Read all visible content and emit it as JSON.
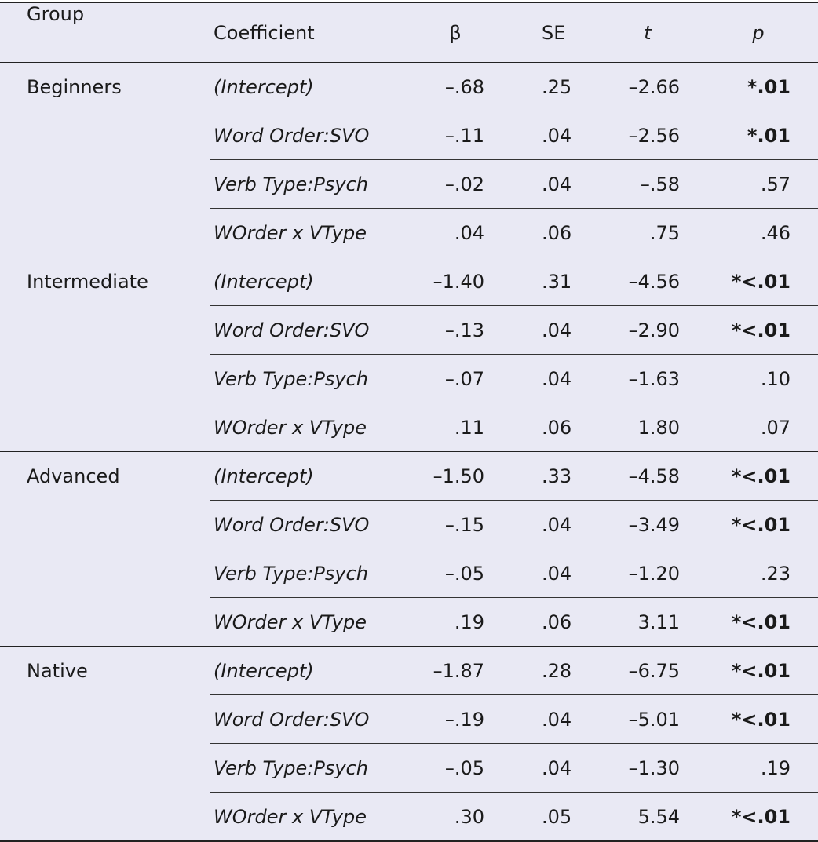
{
  "table": {
    "header": [
      "Group",
      "Coefficient",
      "β",
      "SE",
      "t",
      "p"
    ],
    "groups": [
      {
        "name": "Beginners",
        "rows": [
          [
            "(Intercept)",
            "–.68",
            ".25",
            "–2.66",
            "*.01"
          ],
          [
            "Word Order:SVO",
            "–.11",
            ".04",
            "–2.56",
            "*.01"
          ],
          [
            "Verb Type:Psych",
            "–.02",
            ".04",
            "–.58",
            ".57"
          ],
          [
            "WOrder x VType",
            ".04",
            ".06",
            ".75",
            ".46"
          ]
        ]
      },
      {
        "name": "Intermediate",
        "rows": [
          [
            "(Intercept)",
            "–1.40",
            ".31",
            "–4.56",
            "*<.01"
          ],
          [
            "Word Order:SVO",
            "–.13",
            ".04",
            "–2.90",
            "*<.01"
          ],
          [
            "Verb Type:Psych",
            "–.07",
            ".04",
            "–1.63",
            ".10"
          ],
          [
            "WOrder x VType",
            ".11",
            ".06",
            "1.80",
            ".07"
          ]
        ]
      },
      {
        "name": "Advanced",
        "rows": [
          [
            "(Intercept)",
            "–1.50",
            ".33",
            "–4.58",
            "*<.01"
          ],
          [
            "Word Order:SVO",
            "–.15",
            ".04",
            "–3.49",
            "*<.01"
          ],
          [
            "Verb Type:Psych",
            "–.05",
            ".04",
            "–1.20",
            ".23"
          ],
          [
            "WOrder x VType",
            ".19",
            ".06",
            "3.11",
            "*<.01"
          ]
        ]
      },
      {
        "name": "Native",
        "rows": [
          [
            "(Intercept)",
            "–1.87",
            ".28",
            "–6.75",
            "*<.01"
          ],
          [
            "Word Order:SVO",
            "–.19",
            ".04",
            "–5.01",
            "*<.01"
          ],
          [
            "Verb Type:Psych",
            "–.05",
            ".04",
            "–1.30",
            ".19"
          ],
          [
            "WOrder x VType",
            ".30",
            ".05",
            "5.54",
            "*<.01"
          ]
        ]
      }
    ]
  }
}
